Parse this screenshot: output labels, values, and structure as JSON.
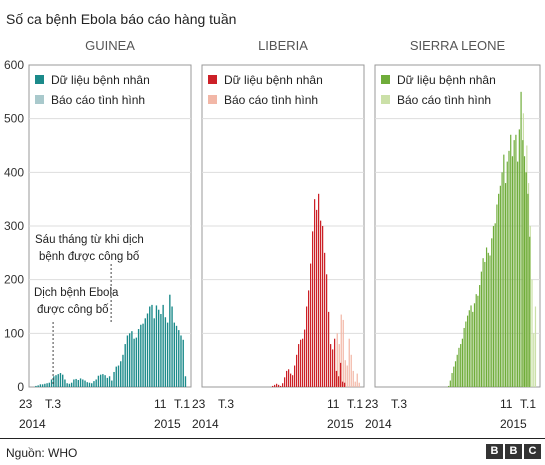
{
  "title": "Số ca bệnh Ebola báo cáo hàng tuần",
  "source": "Nguồn: WHO",
  "logo": [
    "B",
    "B",
    "C"
  ],
  "chart_data": {
    "type": "bar",
    "ylim": [
      0,
      600
    ],
    "yticks": [
      0,
      100,
      200,
      300,
      400,
      500,
      600
    ],
    "grid": true,
    "legend_position": "top-left",
    "legend": [
      "Dữ liệu bệnh nhân",
      "Báo cáo tình hình"
    ],
    "x_tick_labels": [
      "23",
      "T.3",
      "11",
      "T.1"
    ],
    "x_year_labels": [
      "2014",
      "2015"
    ],
    "panels": [
      {
        "name": "GUINEA",
        "colors": {
          "patient": "#1b8a8a",
          "situation": "#a9c9cc"
        },
        "patient": [
          0,
          2,
          3,
          5,
          5,
          6,
          7,
          8,
          14,
          20,
          22,
          24,
          26,
          23,
          14,
          7,
          6,
          8,
          14,
          15,
          13,
          16,
          14,
          12,
          9,
          8,
          7,
          11,
          14,
          21,
          23,
          24,
          22,
          17,
          20,
          12,
          28,
          38,
          40,
          48,
          60,
          80,
          96,
          100,
          104,
          90,
          92,
          108,
          116,
          118,
          128,
          137,
          150,
          153,
          128,
          152,
          144,
          136,
          153,
          130,
          120,
          172,
          150,
          120,
          114,
          106,
          96,
          88,
          20
        ],
        "situation": [
          0,
          0,
          0,
          0,
          0,
          0,
          0,
          0,
          0,
          0,
          0,
          0,
          0,
          0,
          0,
          0,
          0,
          0,
          0,
          0,
          0,
          0,
          0,
          0,
          0,
          0,
          0,
          0,
          0,
          0,
          0,
          0,
          0,
          0,
          0,
          0,
          0,
          0,
          0,
          0,
          0,
          0,
          0,
          0,
          0,
          0,
          0,
          0,
          0,
          0,
          0,
          0,
          0,
          0,
          0,
          0,
          0,
          0,
          0,
          0,
          0,
          0,
          0,
          0,
          0,
          0,
          0,
          0,
          0
        ],
        "annotations": [
          {
            "text": [
              "Dịch bệnh Ebola",
              "được công bố"
            ],
            "week": 9
          },
          {
            "text": [
              "Sáu tháng từ khi dịch",
              "bệnh được công bố"
            ],
            "week": 35
          }
        ]
      },
      {
        "name": "LIBERIA",
        "colors": {
          "patient": "#cc2027",
          "situation": "#f2b7a7"
        },
        "patient": [
          0,
          0,
          0,
          0,
          0,
          0,
          0,
          0,
          0,
          0,
          0,
          0,
          0,
          0,
          0,
          0,
          0,
          0,
          0,
          0,
          0,
          0,
          0,
          0,
          0,
          0,
          0,
          0,
          0,
          0,
          0,
          0,
          0,
          2,
          4,
          6,
          4,
          2,
          7,
          18,
          30,
          33,
          25,
          22,
          40,
          60,
          80,
          88,
          90,
          107,
          150,
          180,
          230,
          290,
          350,
          330,
          360,
          310,
          300,
          250,
          210,
          140,
          80,
          70,
          90,
          30,
          20,
          45,
          10,
          8
        ],
        "situation": [
          0,
          0,
          0,
          0,
          0,
          0,
          0,
          0,
          0,
          0,
          0,
          0,
          0,
          0,
          0,
          0,
          0,
          0,
          0,
          0,
          0,
          0,
          0,
          0,
          0,
          0,
          0,
          0,
          0,
          0,
          0,
          0,
          0,
          0,
          0,
          0,
          0,
          0,
          0,
          0,
          0,
          0,
          0,
          0,
          0,
          0,
          0,
          0,
          0,
          0,
          0,
          0,
          0,
          0,
          0,
          0,
          0,
          0,
          0,
          0,
          0,
          0,
          0,
          0,
          30,
          100,
          80,
          135,
          125,
          50,
          40,
          90,
          60,
          30,
          10,
          25,
          8
        ]
      },
      {
        "name": "SIERRA LEONE",
        "colors": {
          "patient": "#6fac3a",
          "situation": "#cbe0a8"
        },
        "patient": [
          0,
          0,
          0,
          0,
          0,
          0,
          0,
          0,
          0,
          0,
          0,
          0,
          0,
          0,
          0,
          0,
          0,
          0,
          0,
          0,
          0,
          0,
          0,
          0,
          0,
          0,
          0,
          0,
          0,
          0,
          0,
          0,
          0,
          0,
          0,
          0,
          0,
          0,
          0,
          0,
          2,
          12,
          26,
          38,
          48,
          60,
          73,
          80,
          90,
          110,
          122,
          133,
          143,
          152,
          140,
          156,
          173,
          170,
          190,
          215,
          240,
          233,
          260,
          250,
          245,
          277,
          300,
          305,
          340,
          360,
          375,
          400,
          433,
          380,
          420,
          440,
          470,
          430,
          460,
          470,
          420,
          480,
          550,
          460,
          430,
          400,
          360,
          280
        ],
        "situation": [
          0,
          0,
          0,
          0,
          0,
          0,
          0,
          0,
          0,
          0,
          0,
          0,
          0,
          0,
          0,
          0,
          0,
          0,
          0,
          0,
          0,
          0,
          0,
          0,
          0,
          0,
          0,
          0,
          0,
          0,
          0,
          0,
          0,
          0,
          0,
          0,
          0,
          0,
          0,
          0,
          0,
          0,
          0,
          0,
          0,
          0,
          0,
          0,
          0,
          0,
          0,
          0,
          0,
          0,
          0,
          0,
          0,
          0,
          0,
          0,
          0,
          0,
          0,
          0,
          0,
          0,
          0,
          0,
          0,
          0,
          0,
          0,
          0,
          0,
          0,
          0,
          0,
          0,
          0,
          0,
          0,
          0,
          0,
          510,
          400,
          450,
          380,
          300,
          200,
          100,
          150
        ]
      }
    ]
  }
}
